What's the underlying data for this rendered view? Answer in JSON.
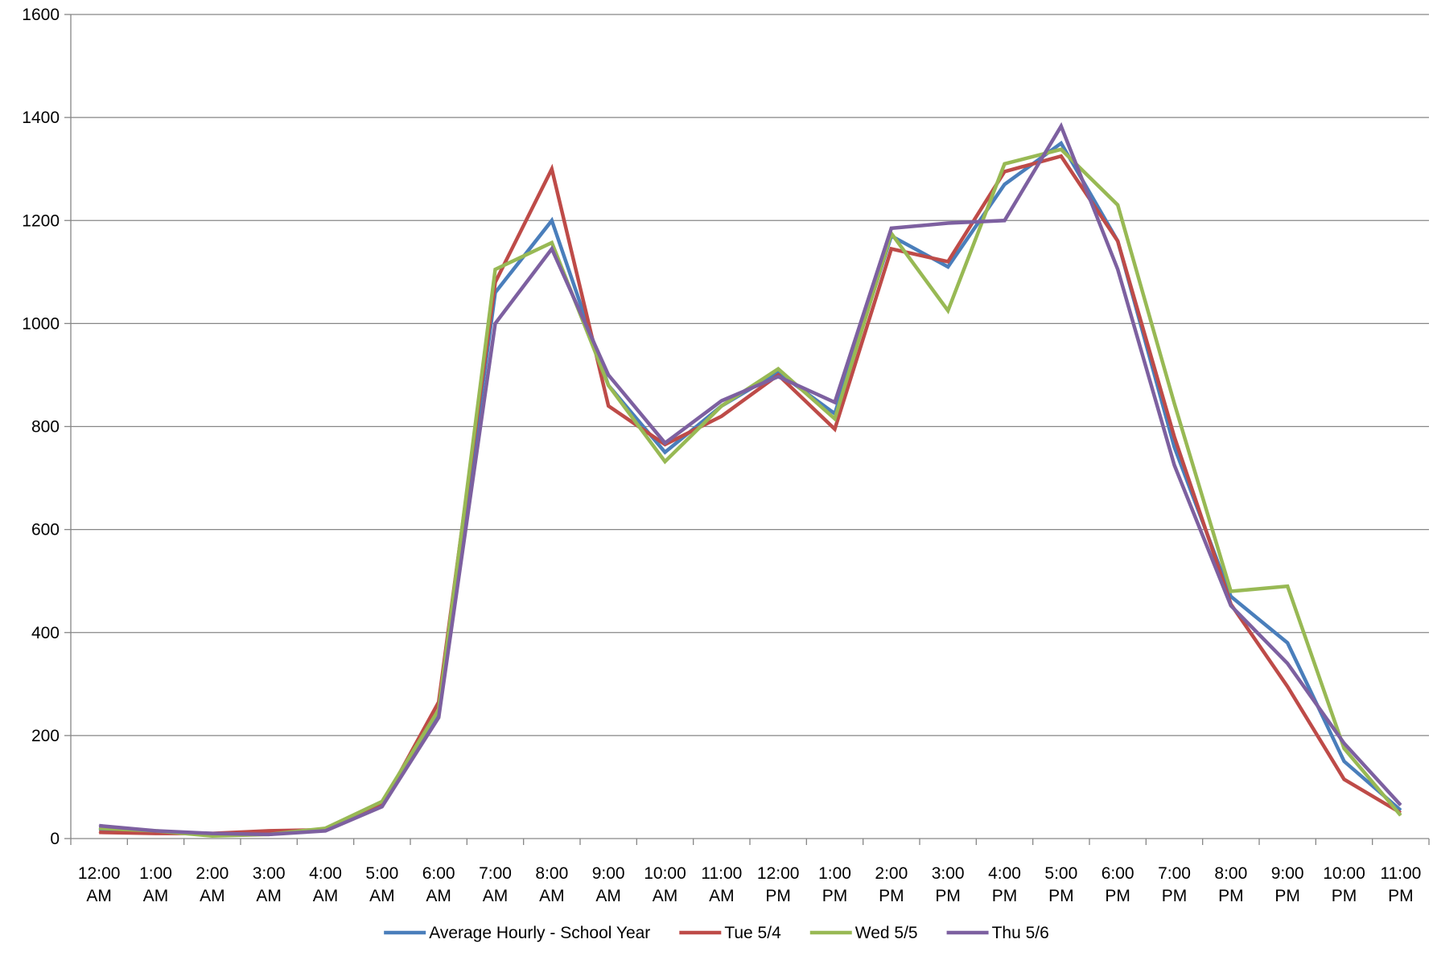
{
  "chart_data": {
    "type": "line",
    "title": "",
    "xlabel": "",
    "ylabel": "",
    "ylim": [
      0,
      1600
    ],
    "yticks": [
      0,
      200,
      400,
      600,
      800,
      1000,
      1200,
      1400,
      1600
    ],
    "grid": "horizontal",
    "legend_position": "bottom",
    "categories": [
      [
        "12:00",
        "AM"
      ],
      [
        "1:00",
        "AM"
      ],
      [
        "2:00",
        "AM"
      ],
      [
        "3:00",
        "AM"
      ],
      [
        "4:00",
        "AM"
      ],
      [
        "5:00",
        "AM"
      ],
      [
        "6:00",
        "AM"
      ],
      [
        "7:00",
        "AM"
      ],
      [
        "8:00",
        "AM"
      ],
      [
        "9:00",
        "AM"
      ],
      [
        "10:00",
        "AM"
      ],
      [
        "11:00",
        "AM"
      ],
      [
        "12:00",
        "PM"
      ],
      [
        "1:00",
        "PM"
      ],
      [
        "2:00",
        "PM"
      ],
      [
        "3:00",
        "PM"
      ],
      [
        "4:00",
        "PM"
      ],
      [
        "5:00",
        "PM"
      ],
      [
        "6:00",
        "PM"
      ],
      [
        "7:00",
        "PM"
      ],
      [
        "8:00",
        "PM"
      ],
      [
        "9:00",
        "PM"
      ],
      [
        "10:00",
        "PM"
      ],
      [
        "11:00",
        "PM"
      ]
    ],
    "series": [
      {
        "name": "Average Hourly - School Year",
        "color": "#4a7ebb",
        "values": [
          18,
          14,
          8,
          10,
          18,
          65,
          245,
          1060,
          1200,
          880,
          750,
          840,
          905,
          825,
          1170,
          1110,
          1270,
          1350,
          1160,
          760,
          470,
          380,
          150,
          55
        ]
      },
      {
        "name": "Tue 5/4",
        "color": "#be4b48",
        "values": [
          12,
          10,
          10,
          15,
          17,
          65,
          265,
          1080,
          1300,
          840,
          765,
          820,
          900,
          795,
          1145,
          1120,
          1295,
          1325,
          1160,
          780,
          455,
          295,
          115,
          50
        ]
      },
      {
        "name": "Wed 5/5",
        "color": "#98b954",
        "values": [
          20,
          15,
          5,
          8,
          20,
          72,
          250,
          1105,
          1157,
          880,
          732,
          840,
          912,
          815,
          1175,
          1025,
          1310,
          1338,
          1230,
          845,
          480,
          490,
          175,
          45
        ]
      },
      {
        "name": "Thu 5/6",
        "color": "#7d60a0",
        "values": [
          25,
          15,
          10,
          8,
          15,
          62,
          235,
          1000,
          1145,
          900,
          768,
          850,
          897,
          847,
          1185,
          1195,
          1200,
          1383,
          1105,
          725,
          452,
          340,
          185,
          65
        ]
      }
    ]
  }
}
